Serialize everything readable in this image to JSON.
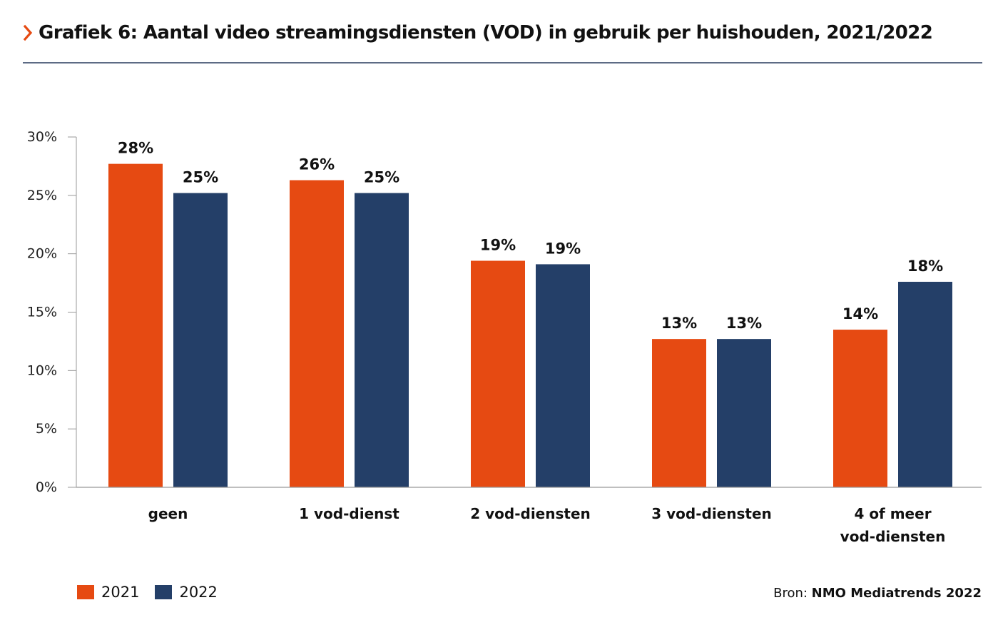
{
  "title": "Grafiek 6: Aantal video streamingsdiensten (VOD) in gebruik per huishouden, 2021/2022",
  "colors": {
    "accent": "#e64a12",
    "series_2021": "#e64a12",
    "series_2022": "#243f68",
    "rule": "#5d6b85",
    "axis": "#999999"
  },
  "chart_data": {
    "type": "bar",
    "categories": [
      [
        "geen"
      ],
      [
        "1 vod-dienst"
      ],
      [
        "2 vod-diensten"
      ],
      [
        "3 vod-diensten"
      ],
      [
        "4 of meer",
        "vod-diensten"
      ]
    ],
    "series": [
      {
        "name": "2021",
        "values": [
          27.7,
          26.3,
          19.4,
          12.7,
          13.5
        ],
        "labels": [
          "28%",
          "26%",
          "19%",
          "13%",
          "14%"
        ]
      },
      {
        "name": "2022",
        "values": [
          25.2,
          25.2,
          19.1,
          12.7,
          17.6
        ],
        "labels": [
          "25%",
          "25%",
          "19%",
          "13%",
          "18%"
        ]
      }
    ],
    "ylim": [
      0,
      30
    ],
    "yticks": [
      0,
      5,
      10,
      15,
      20,
      25,
      30
    ],
    "ytick_labels": [
      "0%",
      "5%",
      "10%",
      "15%",
      "20%",
      "25%",
      "30%"
    ],
    "xlabel": "",
    "ylabel": "",
    "grid": false,
    "legend_position": "bottom-left"
  },
  "legend": {
    "items": [
      {
        "label": "2021"
      },
      {
        "label": "2022"
      }
    ]
  },
  "source": {
    "prefix": "Bron: ",
    "name": "NMO Mediatrends 2022"
  }
}
